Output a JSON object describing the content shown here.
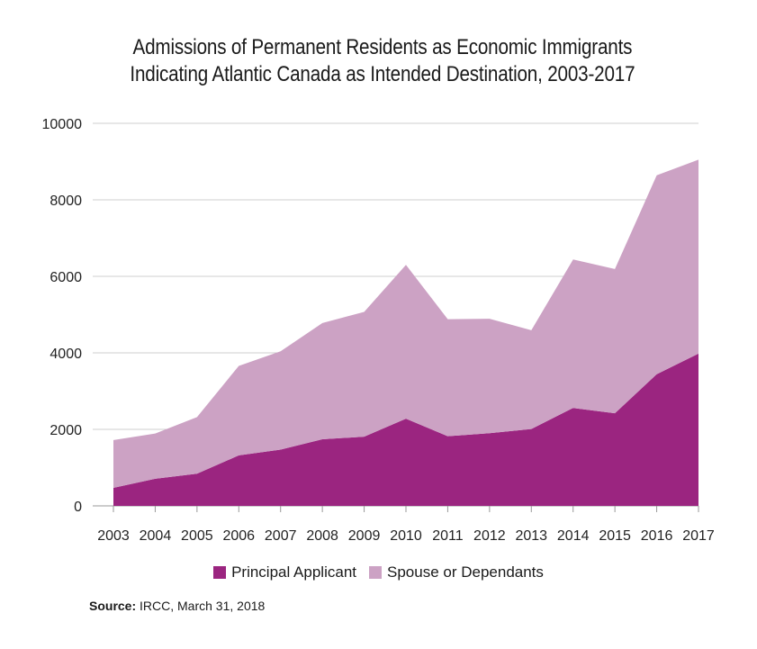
{
  "title_line1": "Admissions of Permanent Residents as Economic Immigrants",
  "title_line2": "Indicating Atlantic Canada as Intended Destination, 2003-2017",
  "source_label": "Source:",
  "source_text": "IRCC, March 31, 2018",
  "colors": {
    "principal": "#9b2580",
    "spouse": "#cca2c4",
    "grid": "#cfcfcf",
    "axis": "#999999"
  },
  "chart_data": {
    "type": "area",
    "stacked": true,
    "title": "Admissions of Permanent Residents as Economic Immigrants Indicating Atlantic Canada as Intended Destination, 2003-2017",
    "xlabel": "",
    "ylabel": "",
    "x": [
      "2003",
      "2004",
      "2005",
      "2006",
      "2007",
      "2008",
      "2009",
      "2010",
      "2011",
      "2012",
      "2013",
      "2014",
      "2015",
      "2016",
      "2017"
    ],
    "ylim": [
      0,
      10000
    ],
    "yticks": [
      "0",
      "2000",
      "4000",
      "6000",
      "8000",
      "10000"
    ],
    "grid": true,
    "legend_position": "bottom",
    "series": [
      {
        "name": "Principal Applicant",
        "color": "#9b2580",
        "values": [
          470,
          710,
          840,
          1320,
          1470,
          1740,
          1810,
          2280,
          1820,
          1900,
          2010,
          2560,
          2420,
          3440,
          3980
        ]
      },
      {
        "name": "Spouse or Dependants",
        "color": "#cca2c4",
        "values": [
          1250,
          1180,
          1480,
          2340,
          2570,
          3040,
          3260,
          4020,
          3060,
          2990,
          2580,
          3880,
          3770,
          5200,
          5070
        ]
      }
    ]
  }
}
